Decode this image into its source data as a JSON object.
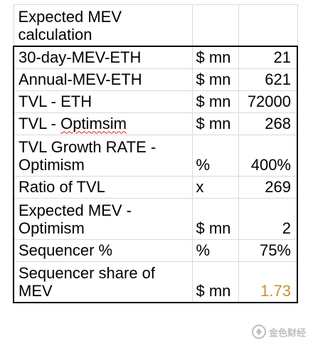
{
  "table": {
    "title": "Expected MEV calculation",
    "rows": [
      {
        "label": "30-day-MEV-ETH",
        "unit": "$ mn",
        "value": "21"
      },
      {
        "label": "Annual-MEV-ETH",
        "unit": "$ mn",
        "value": "621"
      },
      {
        "label": "TVL - ETH",
        "unit": "$ mn",
        "value": "72000"
      },
      {
        "label_prefix": "TVL - ",
        "label_misspelled": "Optimsim",
        "unit": "$ mn",
        "value": "268"
      },
      {
        "label": "TVL Growth RATE - Optimism",
        "unit": "%",
        "value": "400%"
      },
      {
        "label": "Ratio of TVL",
        "unit": "x",
        "value": "269"
      },
      {
        "label": "Expected MEV - Optimism",
        "unit": "$ mn",
        "value": "2"
      },
      {
        "label": "Sequencer %",
        "unit": "%",
        "value": "75%"
      },
      {
        "label": "Sequencer share of MEV",
        "unit": "$ mn",
        "value": "1.73"
      }
    ]
  },
  "colors": {
    "highlight_value": "#c7922c",
    "outline": "#000000",
    "gridline": "#d9d9d9",
    "spellcheck_underline": "#e02020"
  },
  "watermark": {
    "icon": "jinse-logo-icon",
    "text": "金色财经"
  }
}
